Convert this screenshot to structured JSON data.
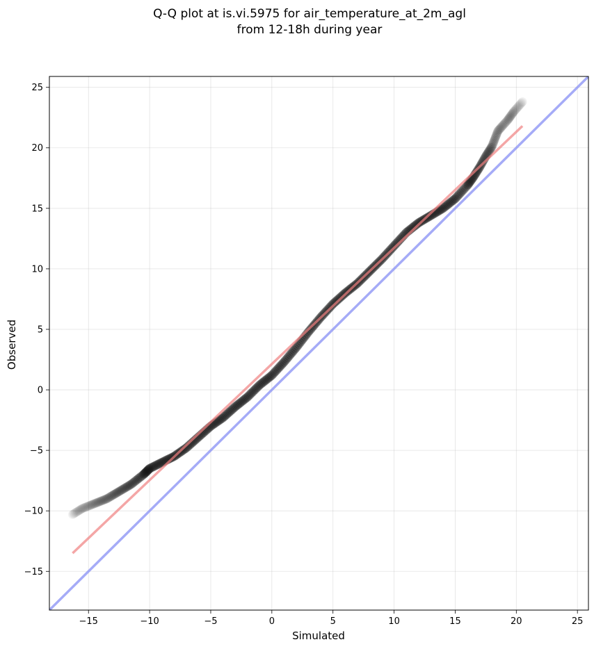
{
  "chart_data": {
    "type": "scatter",
    "title": [
      "Q-Q plot at is.vi.5975 for air_temperature_at_2m_agl",
      "from 12-18h during year"
    ],
    "xlabel": "Simulated",
    "ylabel": "Observed",
    "xlim": [
      -18.2,
      25.9
    ],
    "ylim": [
      -18.2,
      25.9
    ],
    "xticks": [
      -15,
      -10,
      -5,
      0,
      5,
      10,
      15,
      20,
      25
    ],
    "yticks": [
      -15,
      -10,
      -5,
      0,
      5,
      10,
      15,
      20,
      25
    ],
    "tick_labels": [
      "−15",
      "−10",
      "−5",
      "0",
      "5",
      "10",
      "15",
      "20",
      "25"
    ],
    "grid": true,
    "quantile_curve": [
      [
        -16.3,
        -10.3
      ],
      [
        -15.5,
        -9.8
      ],
      [
        -14.5,
        -9.4
      ],
      [
        -13.5,
        -9.0
      ],
      [
        -12.5,
        -8.4
      ],
      [
        -11.5,
        -7.8
      ],
      [
        -10.5,
        -7.0
      ],
      [
        -10.0,
        -6.5
      ],
      [
        -9.0,
        -6.0
      ],
      [
        -8.0,
        -5.5
      ],
      [
        -7.0,
        -4.8
      ],
      [
        -6.0,
        -3.9
      ],
      [
        -5.0,
        -3.0
      ],
      [
        -4.0,
        -2.3
      ],
      [
        -3.0,
        -1.4
      ],
      [
        -2.0,
        -0.6
      ],
      [
        -1.0,
        0.4
      ],
      [
        0.0,
        1.2
      ],
      [
        1.0,
        2.3
      ],
      [
        2.0,
        3.5
      ],
      [
        3.0,
        4.8
      ],
      [
        4.0,
        6.0
      ],
      [
        5.0,
        7.1
      ],
      [
        6.0,
        8.0
      ],
      [
        7.0,
        8.8
      ],
      [
        8.0,
        9.8
      ],
      [
        9.0,
        10.8
      ],
      [
        10.0,
        11.9
      ],
      [
        11.0,
        13.0
      ],
      [
        12.0,
        13.8
      ],
      [
        13.0,
        14.4
      ],
      [
        14.0,
        15.0
      ],
      [
        15.0,
        15.8
      ],
      [
        16.0,
        16.9
      ],
      [
        16.5,
        17.6
      ],
      [
        17.0,
        18.4
      ],
      [
        17.5,
        19.3
      ],
      [
        18.0,
        20.1
      ],
      [
        18.5,
        21.4
      ],
      [
        19.3,
        22.3
      ],
      [
        19.8,
        23.0
      ],
      [
        20.5,
        23.8
      ]
    ],
    "fit_line": {
      "x": [
        -16.3,
        20.5
      ],
      "y": [
        -13.5,
        21.8
      ],
      "color": "#f08080"
    },
    "identity_line": {
      "x": [
        -18.2,
        25.9
      ],
      "y": [
        -18.2,
        25.9
      ],
      "color": "#8f96f5"
    },
    "point_color": "#111111"
  }
}
